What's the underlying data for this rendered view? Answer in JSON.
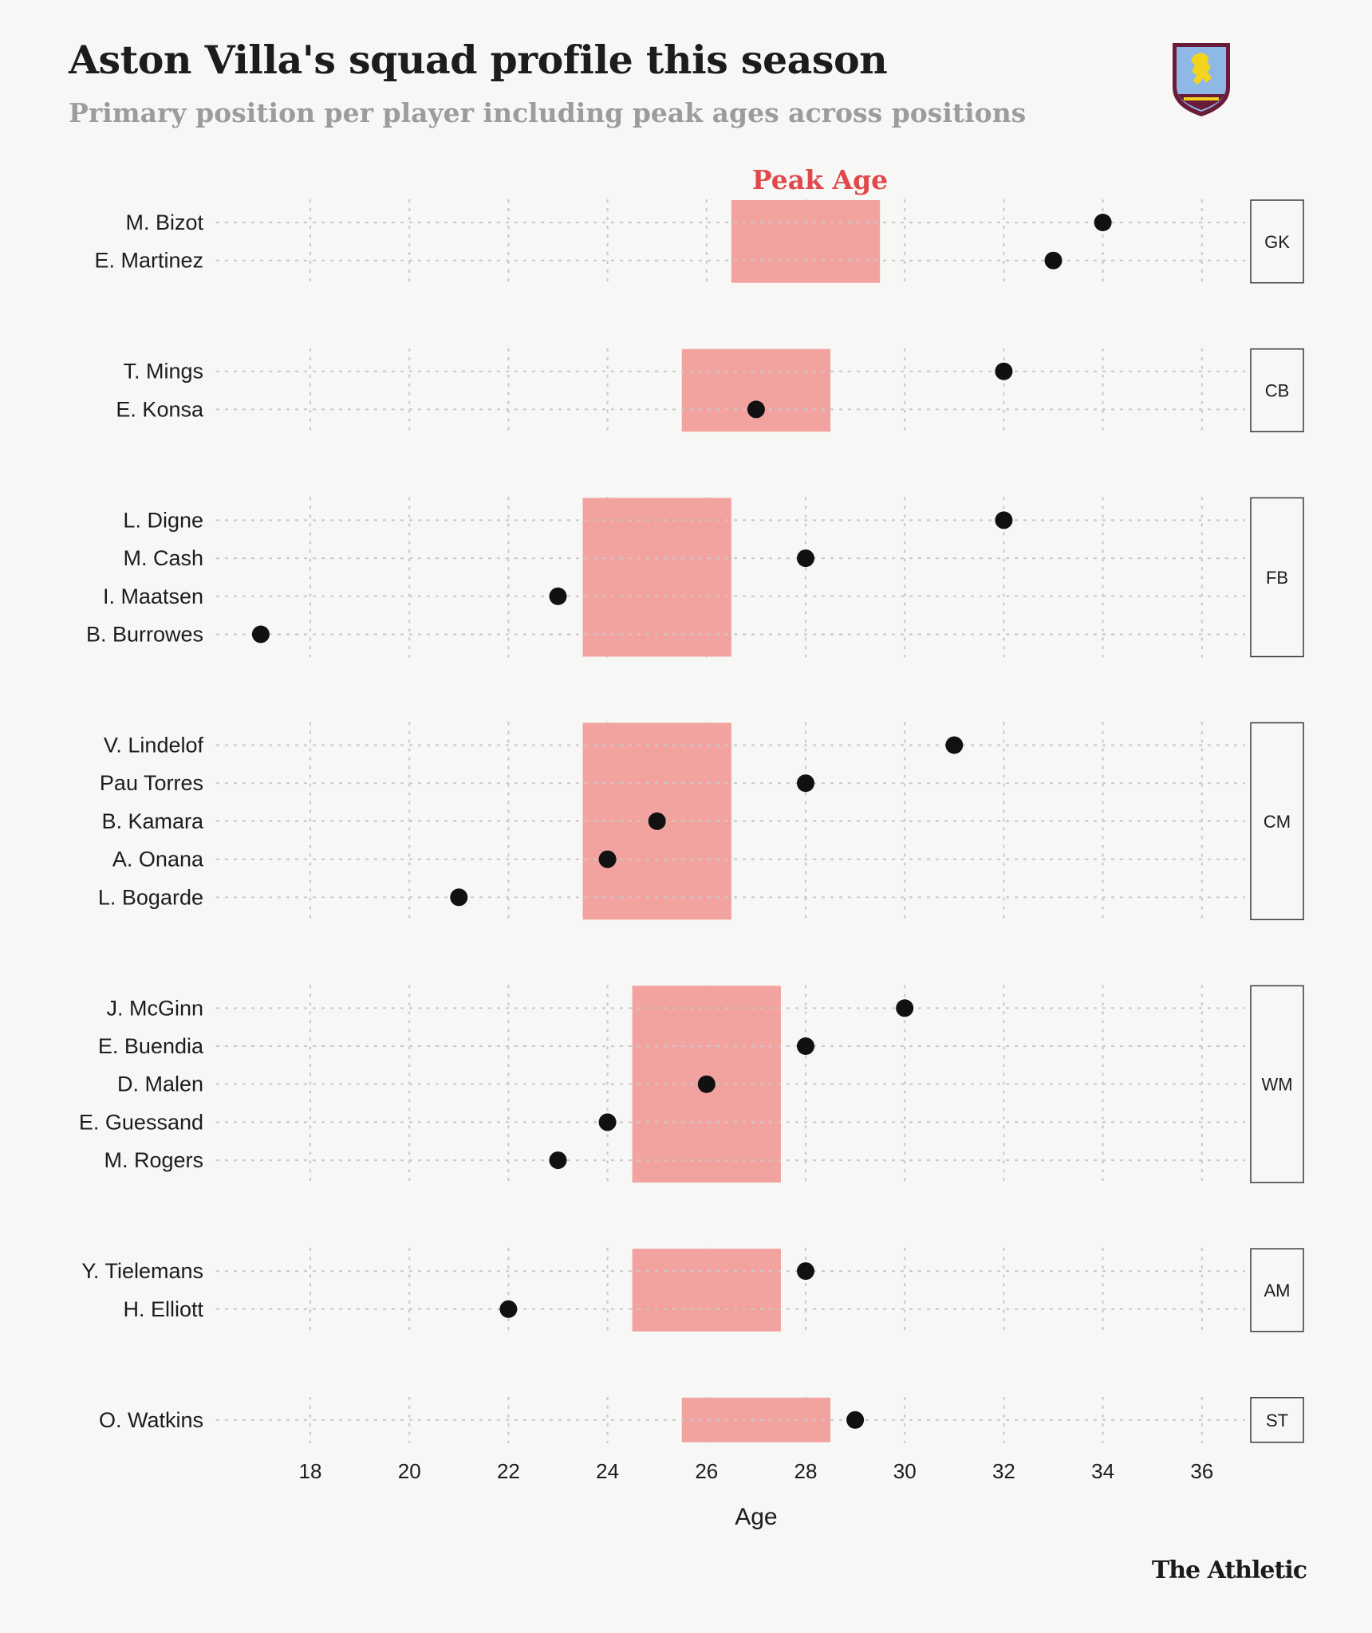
{
  "header": {
    "title": "Aston Villa's squad profile this season",
    "subtitle": "Primary position per player including peak ages across positions",
    "credit": "The Athletic"
  },
  "crest": {
    "icon": "aston-villa-crest-icon",
    "colors": {
      "shield": "#8fb8e6",
      "border": "#6b1b3a",
      "lion": "#f2d41e",
      "band": "#6b1b3a"
    }
  },
  "colors": {
    "peak_band": "#f2a29f",
    "peak_label": "#e0484b",
    "dot": "#111111",
    "grid": "#c9c9c9",
    "text": "#1c1c1c",
    "background": "#f7f7f5"
  },
  "chart_data": {
    "type": "scatter",
    "title": "Aston Villa's squad profile this season",
    "subtitle": "Primary position per player including peak ages across positions",
    "xlabel": "Age",
    "ylabel": "",
    "xlim": [
      16.5,
      37.5
    ],
    "xticks": [
      18,
      20,
      22,
      24,
      26,
      28,
      30,
      32,
      34,
      36
    ],
    "grid": true,
    "peak_label": "Peak Age",
    "groups": [
      {
        "position": "GK",
        "peak": [
          26.5,
          29.5
        ],
        "players": [
          {
            "name": "M. Bizot",
            "age": 34
          },
          {
            "name": "E. Martinez",
            "age": 33
          }
        ]
      },
      {
        "position": "CB",
        "peak": [
          25.5,
          28.5
        ],
        "players": [
          {
            "name": "T. Mings",
            "age": 32
          },
          {
            "name": "E. Konsa",
            "age": 27
          }
        ]
      },
      {
        "position": "FB",
        "peak": [
          23.5,
          26.5
        ],
        "players": [
          {
            "name": "L. Digne",
            "age": 32
          },
          {
            "name": "M. Cash",
            "age": 28
          },
          {
            "name": "I. Maatsen",
            "age": 23
          },
          {
            "name": "B. Burrowes",
            "age": 17
          }
        ]
      },
      {
        "position": "CM",
        "peak": [
          23.5,
          26.5
        ],
        "players": [
          {
            "name": "V. Lindelof",
            "age": 31
          },
          {
            "name": "Pau Torres",
            "age": 28
          },
          {
            "name": "B. Kamara",
            "age": 25
          },
          {
            "name": "A. Onana",
            "age": 24
          },
          {
            "name": "L. Bogarde",
            "age": 21
          }
        ]
      },
      {
        "position": "WM",
        "peak": [
          24.5,
          27.5
        ],
        "players": [
          {
            "name": "J. McGinn",
            "age": 30
          },
          {
            "name": "E. Buendia",
            "age": 28
          },
          {
            "name": "D. Malen",
            "age": 26
          },
          {
            "name": "E. Guessand",
            "age": 24
          },
          {
            "name": "M. Rogers",
            "age": 23
          }
        ]
      },
      {
        "position": "AM",
        "peak": [
          24.5,
          27.5
        ],
        "players": [
          {
            "name": "Y. Tielemans",
            "age": 28
          },
          {
            "name": "H. Elliott",
            "age": 22
          }
        ]
      },
      {
        "position": "ST",
        "peak": [
          25.5,
          28.5
        ],
        "players": [
          {
            "name": "O. Watkins",
            "age": 29
          }
        ]
      }
    ]
  }
}
